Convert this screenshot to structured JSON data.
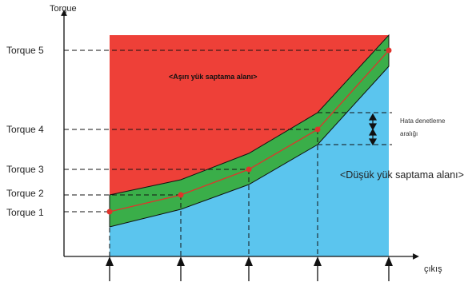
{
  "y_axis_label": "Torque",
  "x_axis_label": "çıkış",
  "torque_labels": [
    "Torque 1",
    "Torque 2",
    "Torque 3",
    "Torque 4",
    "Torque 5"
  ],
  "overload_zone_label": "<Aşırı yük saptama alanı>",
  "underload_zone_label": "<Düşük yük saptama alanı>",
  "error_check_label_line1": "Hata denetleme",
  "error_check_label_line2": "aralığı",
  "colors": {
    "overload_zone": "#EE4038",
    "tolerance_band": "#3AAE49",
    "underload_zone": "#5BC5EE",
    "torque_curve": "#E0332B",
    "axes": "#111111"
  },
  "chart_data": {
    "type": "line",
    "x": [
      1,
      2,
      3,
      4,
      5
    ],
    "series": [
      {
        "values": [
          1,
          2,
          3,
          4,
          5
        ]
      }
    ],
    "xlabel": "çıkış",
    "ylabel": "Torque",
    "y_tick_labels": [
      "Torque 1",
      "Torque 2",
      "Torque 3",
      "Torque 4",
      "Torque 5"
    ]
  }
}
